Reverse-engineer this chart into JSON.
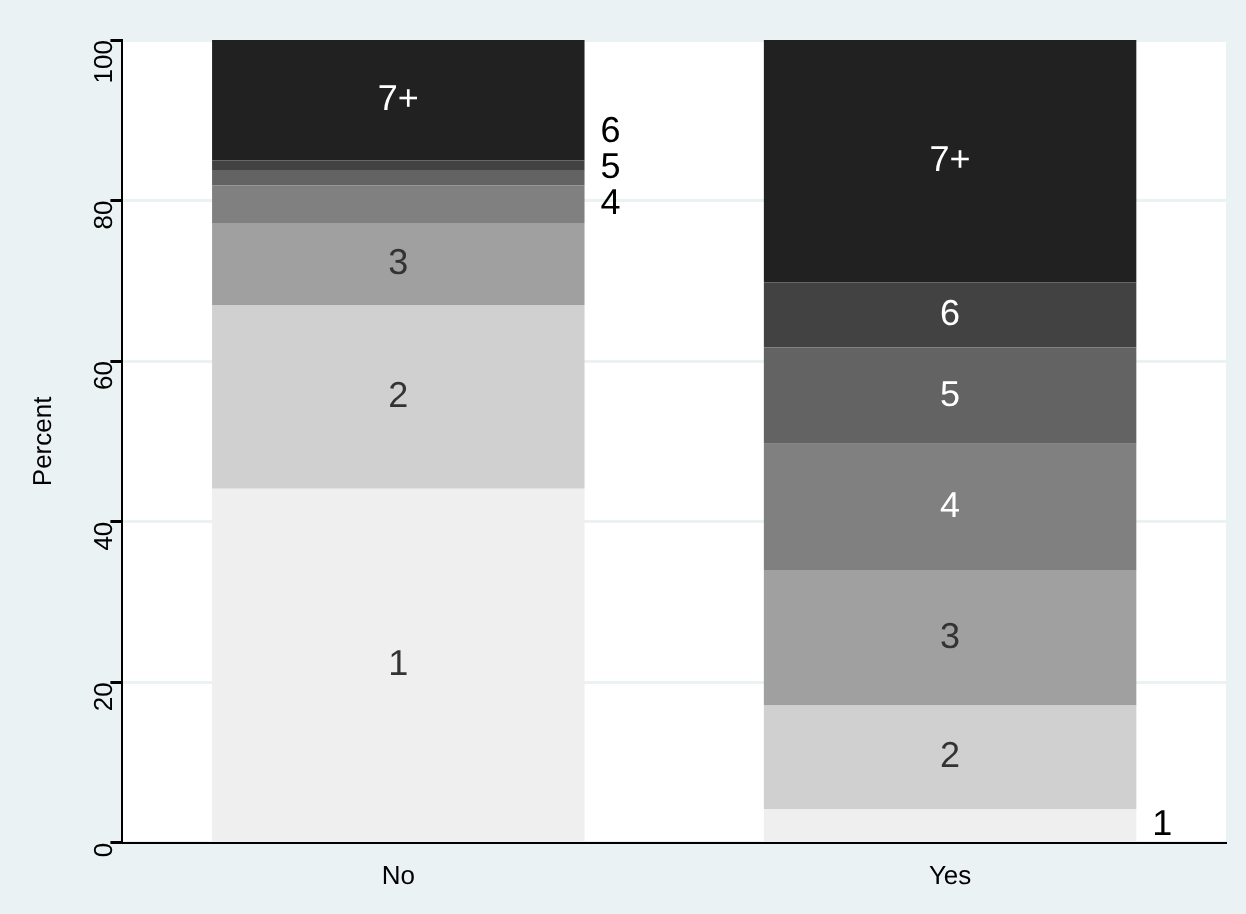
{
  "chart_data": {
    "type": "bar",
    "stacked": true,
    "ylabel": "Percent",
    "categories": [
      "No",
      "Yes"
    ],
    "series": [
      {
        "name": "1",
        "color": "#efefef",
        "values": [
          44.1,
          4.2
        ]
      },
      {
        "name": "2",
        "color": "#d0d0d0",
        "values": [
          22.9,
          12.9
        ]
      },
      {
        "name": "3",
        "color": "#a0a0a0",
        "values": [
          10.2,
          16.8
        ]
      },
      {
        "name": "4",
        "color": "#808080",
        "values": [
          4.7,
          15.8
        ]
      },
      {
        "name": "5",
        "color": "#636363",
        "values": [
          1.9,
          12.0
        ]
      },
      {
        "name": "6",
        "color": "#424242",
        "values": [
          1.2,
          8.1
        ]
      },
      {
        "name": "7+",
        "color": "#212121",
        "values": [
          15.0,
          30.2
        ]
      }
    ],
    "ylim": [
      0,
      100
    ],
    "yticks": [
      0,
      20,
      40,
      60,
      80,
      100
    ],
    "grid": "y",
    "legend": false
  }
}
